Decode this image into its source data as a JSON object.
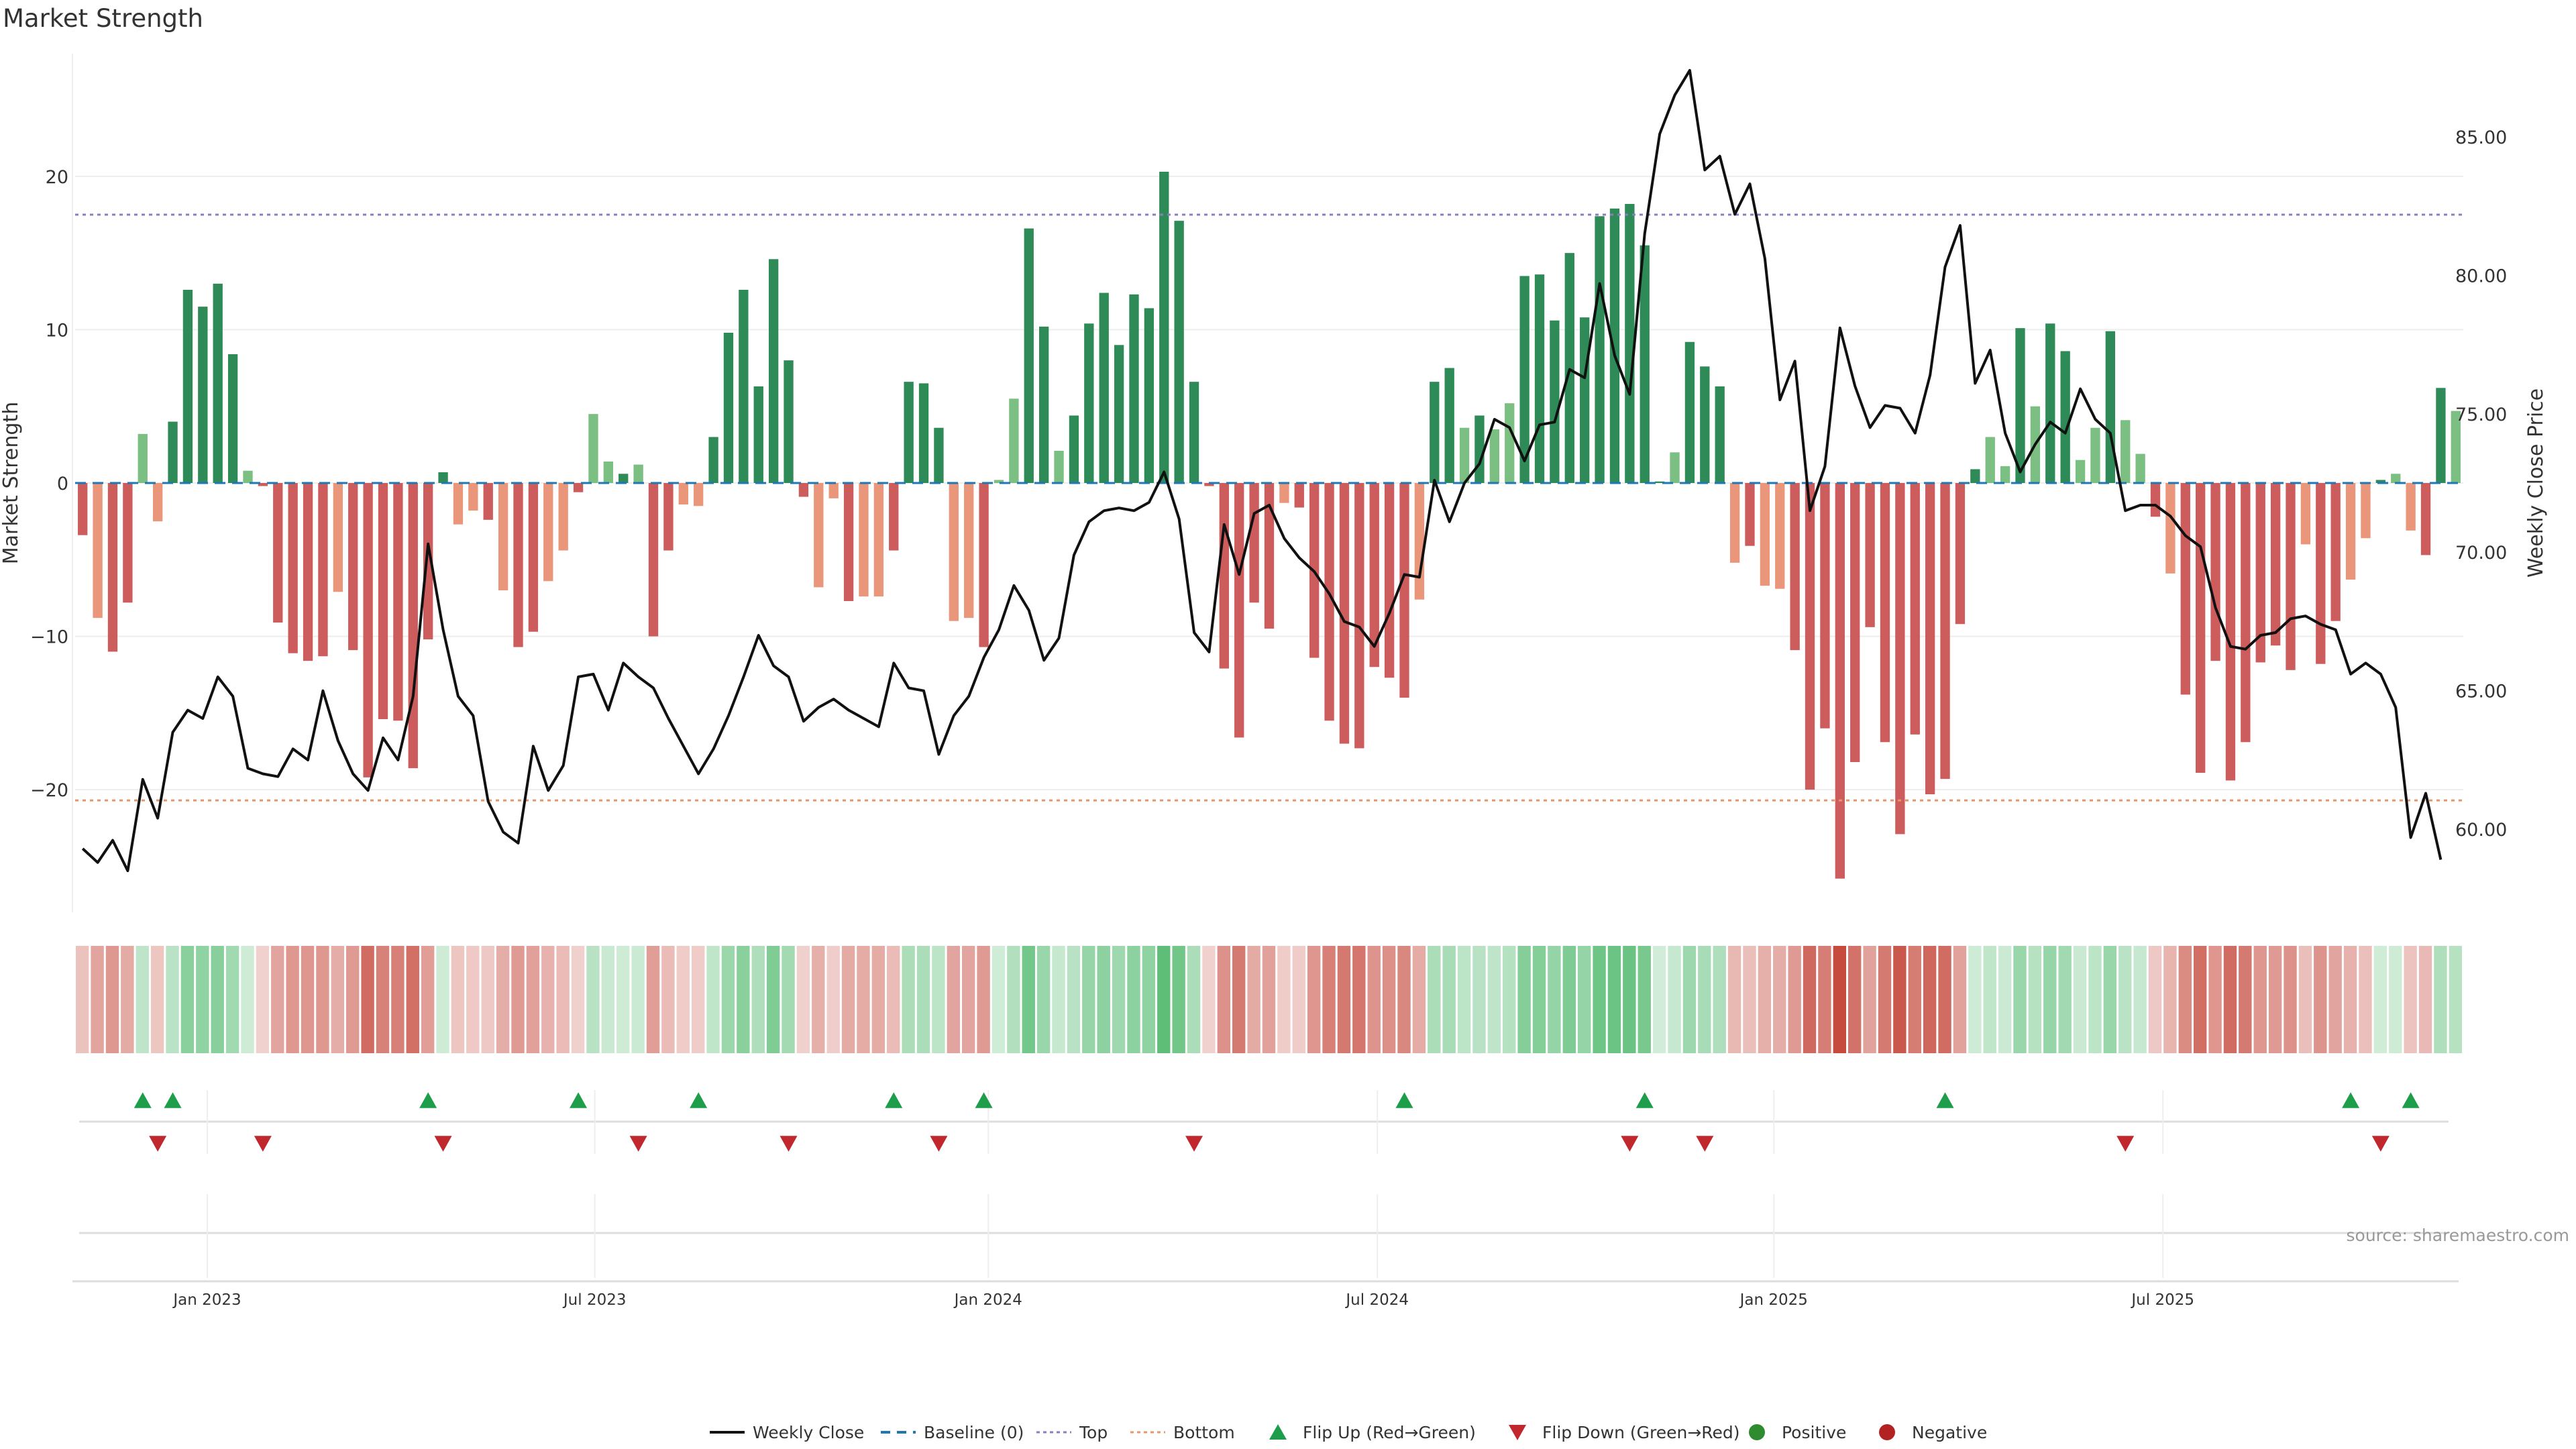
{
  "title": "Market Strength",
  "source": "source: sharemaestro.com",
  "chart_data": {
    "type": "bar",
    "ylabel_left": "Market Strength",
    "ylabel_right": "Weekly Close Price",
    "ylim_left": [
      -28,
      28
    ],
    "ylim_right": [
      57,
      88
    ],
    "left_ticks": [
      {
        "v": 20,
        "label": "20"
      },
      {
        "v": 10,
        "label": "10"
      },
      {
        "v": 0,
        "label": "0"
      },
      {
        "v": -10,
        "label": "−10"
      },
      {
        "v": -20,
        "label": "−20"
      }
    ],
    "right_ticks": [
      {
        "v": 85,
        "label": "85.00"
      },
      {
        "v": 80,
        "label": "80.00"
      },
      {
        "v": 75,
        "label": "75.00"
      },
      {
        "v": 70,
        "label": "70.00"
      },
      {
        "v": 65,
        "label": "65.00"
      },
      {
        "v": 60,
        "label": "60.00"
      }
    ],
    "x_ticks": [
      {
        "i": 8.3,
        "label": "Jan 2023"
      },
      {
        "i": 34.1,
        "label": "Jul 2023"
      },
      {
        "i": 60.3,
        "label": "Jan 2024"
      },
      {
        "i": 86.2,
        "label": "Jul 2024"
      },
      {
        "i": 112.6,
        "label": "Jan 2025"
      },
      {
        "i": 138.5,
        "label": "Jul 2025"
      }
    ],
    "top_line": 17.5,
    "bottom_line": -20.7,
    "strength": [
      -3.4,
      -8.8,
      -11.0,
      -7.8,
      3.2,
      -2.5,
      4.0,
      12.6,
      11.5,
      13.0,
      8.4,
      0.8,
      -0.2,
      -9.1,
      -11.1,
      -11.6,
      -11.3,
      -7.1,
      -10.9,
      -19.2,
      -15.4,
      -15.5,
      -18.6,
      -10.2,
      0.7,
      -2.7,
      -1.8,
      -2.4,
      -7.0,
      -10.7,
      -9.7,
      -6.4,
      -4.4,
      -0.6,
      4.5,
      1.4,
      0.6,
      1.2,
      -10.0,
      -4.4,
      -1.4,
      -1.5,
      3.0,
      9.8,
      12.6,
      6.3,
      14.6,
      8.0,
      -0.9,
      -6.8,
      -1.0,
      -7.7,
      -7.4,
      -7.4,
      -4.4,
      6.6,
      6.5,
      3.6,
      -9.0,
      -8.8,
      -10.7,
      0.2,
      5.5,
      16.6,
      10.2,
      2.1,
      4.4,
      10.4,
      12.4,
      9.0,
      12.3,
      11.4,
      20.3,
      17.1,
      6.6,
      -0.2,
      -12.1,
      -16.6,
      -7.8,
      -9.5,
      -1.3,
      -1.6,
      -11.4,
      -15.5,
      -17.0,
      -17.3,
      -12.0,
      -12.7,
      -14.0,
      -7.6,
      6.6,
      7.5,
      3.6,
      4.4,
      3.5,
      5.2,
      13.5,
      13.6,
      10.6,
      15.0,
      10.8,
      17.4,
      17.9,
      18.2,
      15.5,
      0.1,
      2.0,
      9.2,
      7.6,
      6.3,
      -5.2,
      -4.1,
      -6.7,
      -6.9,
      -10.9,
      -20.0,
      -16.0,
      -25.8,
      -18.2,
      -9.4,
      -16.9,
      -22.9,
      -16.4,
      -20.3,
      -19.3,
      -9.2,
      0.9,
      3.0,
      1.1,
      10.1,
      5.0,
      10.4,
      8.6,
      1.5,
      3.6,
      9.9,
      4.1,
      1.9,
      -2.2,
      -5.9,
      -13.8,
      -18.9,
      -11.6,
      -19.4,
      -16.9,
      -11.7,
      -10.6,
      -12.2,
      -4.0,
      -11.8,
      -9.0,
      -6.3,
      -3.6,
      0.2,
      0.6,
      -3.1,
      -4.7,
      6.2,
      4.7
    ],
    "price": [
      59.3,
      58.8,
      59.6,
      58.5,
      61.8,
      60.4,
      63.5,
      64.3,
      64.0,
      65.5,
      64.8,
      62.2,
      62.0,
      61.9,
      62.9,
      62.5,
      65.0,
      63.2,
      62.0,
      61.4,
      63.3,
      62.5,
      64.8,
      70.3,
      67.2,
      64.8,
      64.1,
      61.0,
      59.9,
      59.5,
      63.0,
      61.4,
      62.3,
      65.5,
      65.6,
      64.3,
      66.0,
      65.5,
      65.1,
      64.0,
      63.0,
      62.0,
      62.9,
      64.1,
      65.5,
      67.0,
      65.9,
      65.5,
      63.9,
      64.4,
      64.7,
      64.3,
      64.0,
      63.7,
      66.0,
      65.1,
      65.0,
      62.7,
      64.1,
      64.8,
      66.2,
      67.2,
      68.8,
      67.9,
      66.1,
      66.9,
      69.9,
      71.1,
      71.5,
      71.6,
      71.5,
      71.8,
      72.9,
      71.2,
      67.1,
      66.4,
      71.0,
      69.2,
      71.4,
      71.7,
      70.5,
      69.8,
      69.3,
      68.5,
      67.5,
      67.3,
      66.6,
      67.8,
      69.2,
      69.1,
      72.6,
      71.1,
      72.5,
      73.2,
      74.8,
      74.5,
      73.3,
      74.6,
      74.7,
      76.6,
      76.3,
      79.7,
      77.1,
      75.7,
      81.5,
      85.1,
      86.5,
      87.4,
      83.8,
      84.3,
      82.2,
      83.3,
      80.6,
      75.5,
      76.9,
      71.5,
      73.1,
      78.1,
      76.0,
      74.5,
      75.3,
      75.2,
      74.3,
      76.4,
      80.3,
      81.8,
      76.1,
      77.3,
      74.3,
      72.9,
      73.9,
      74.7,
      74.3,
      75.9,
      74.8,
      74.3,
      71.5,
      71.7,
      71.7,
      71.3,
      70.6,
      70.2,
      68.0,
      66.6,
      66.5,
      67.0,
      67.1,
      67.6,
      67.7,
      67.4,
      67.2,
      65.6,
      66.0,
      65.6,
      64.4,
      59.7,
      61.3,
      58.9
    ],
    "flip_up": [
      4,
      6,
      23,
      33,
      41,
      54,
      60,
      88,
      104,
      124,
      151,
      155
    ],
    "flip_down": [
      5,
      12,
      24,
      37,
      47,
      57,
      74,
      103,
      108,
      136,
      153
    ]
  },
  "legend": [
    {
      "label": "Weekly Close",
      "kind": "line",
      "color": "#111111"
    },
    {
      "label": "Baseline (0)",
      "kind": "dash",
      "color": "#1f77b4"
    },
    {
      "label": "Top",
      "kind": "dot",
      "color": "#8e7cc3"
    },
    {
      "label": "Bottom",
      "kind": "dot",
      "color": "#e8956b"
    },
    {
      "label": "Flip Up (Red→Green)",
      "kind": "tri-up",
      "color": "#1e9e4a"
    },
    {
      "label": "Flip Down (Green→Red)",
      "kind": "tri-down",
      "color": "#c0282d"
    },
    {
      "label": "Positive",
      "kind": "circle",
      "color": "#2e8b2e"
    },
    {
      "label": "Negative",
      "kind": "circle",
      "color": "#b22222"
    }
  ],
  "colors": {
    "pos_dark": "#2e8b57",
    "pos_light": "#7cbf82",
    "neg_dark": "#cd5c5c",
    "neg_light": "#e9967a",
    "price_line": "#111111",
    "baseline": "#1f77b4",
    "top_line": "#8e7cc3",
    "bottom_line": "#e8956b"
  }
}
